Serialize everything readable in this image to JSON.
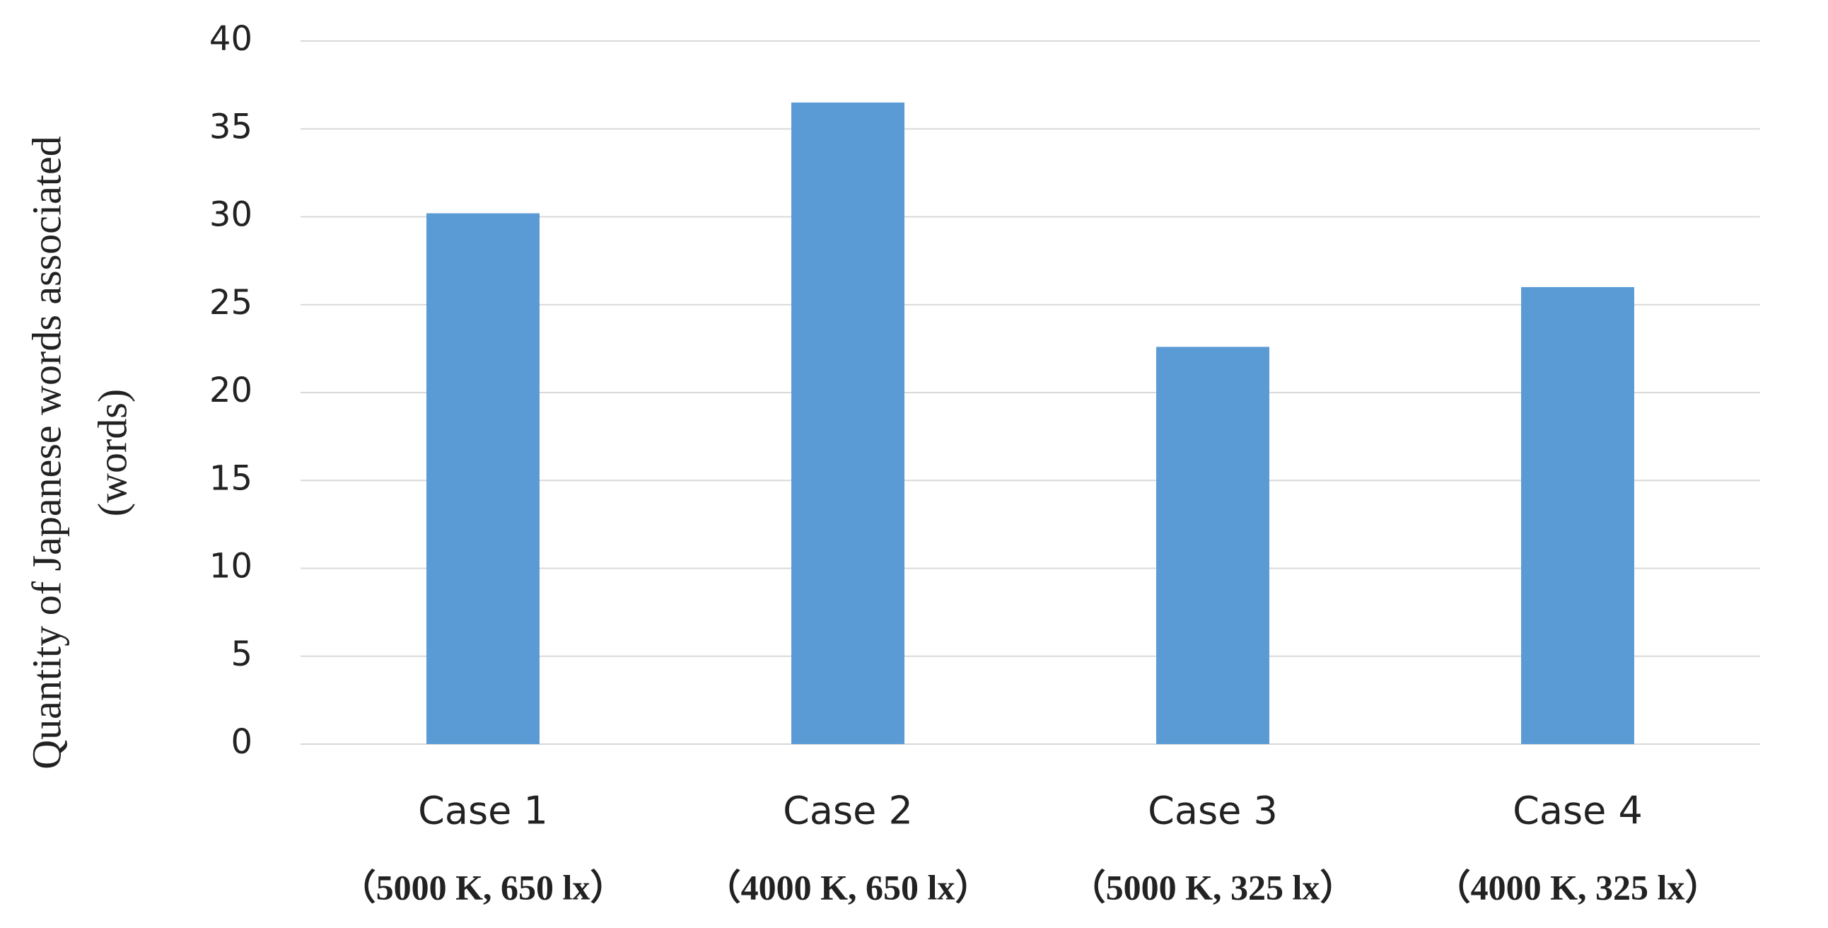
{
  "chart_data": {
    "type": "bar",
    "y_label": [
      "Quantity of Japanese words associated",
      "(words)"
    ],
    "categories": [
      "Case 1",
      "Case 2",
      "Case 3",
      "Case 4"
    ],
    "category_details": [
      "（5000 K, 650 lx）",
      "（4000 K,  650 lx）",
      "（5000 K,  325 lx）",
      "（4000 K, 325 lx）"
    ],
    "values": [
      30.2,
      36.5,
      22.6,
      26.0
    ],
    "color": "#5b9bd5",
    "ylim": [
      0,
      40
    ],
    "yticks": [
      0,
      5,
      10,
      15,
      20,
      25,
      30,
      35,
      40
    ],
    "grid": true
  }
}
